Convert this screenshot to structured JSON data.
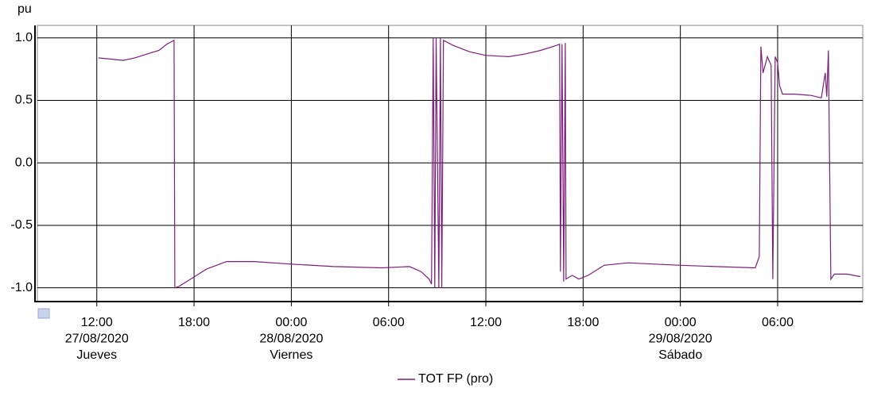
{
  "chart_data": {
    "type": "line",
    "y_label": "pu",
    "x": [
      "2020-08-27 12:06",
      "2020-08-27 12:53",
      "2020-08-27 13:37",
      "2020-08-27 14:21",
      "2020-08-27 15:05",
      "2020-08-27 15:50",
      "2020-08-27 16:19",
      "2020-08-27 16:46",
      "2020-08-27 16:49",
      "2020-08-27 17:03",
      "2020-08-27 17:47",
      "2020-08-27 18:46",
      "2020-08-27 20:00",
      "2020-08-27 21:43",
      "2020-08-28 00:00",
      "2020-08-28 02:37",
      "2020-08-28 05:34",
      "2020-08-28 07:17",
      "2020-08-28 08:00",
      "2020-08-28 08:30",
      "2020-08-28 08:39",
      "2020-08-28 08:45",
      "2020-08-28 08:51",
      "2020-08-28 08:56",
      "2020-08-28 09:06",
      "2020-08-28 09:12",
      "2020-08-28 09:17",
      "2020-08-28 09:23",
      "2020-08-28 09:59",
      "2020-08-28 10:58",
      "2020-08-28 11:59",
      "2020-08-28 13:25",
      "2020-08-28 14:23",
      "2020-08-28 15:23",
      "2020-08-28 16:22",
      "2020-08-28 16:33",
      "2020-08-28 16:36",
      "2020-08-28 16:42",
      "2020-08-28 16:48",
      "2020-08-28 16:54",
      "2020-08-28 16:57",
      "2020-08-28 17:20",
      "2020-08-28 17:44",
      "2020-08-28 18:19",
      "2020-08-28 19:18",
      "2020-08-28 20:46",
      "2020-08-29 00:00",
      "2020-08-29 02:10",
      "2020-08-29 04:37",
      "2020-08-29 04:52",
      "2020-08-29 04:58",
      "2020-08-29 05:06",
      "2020-08-29 05:22",
      "2020-08-29 05:36",
      "2020-08-29 05:42",
      "2020-08-29 05:51",
      "2020-08-29 06:00",
      "2020-08-29 06:07",
      "2020-08-29 06:18",
      "2020-08-29 07:04",
      "2020-08-29 08:03",
      "2020-08-29 08:42",
      "2020-08-29 08:56",
      "2020-08-29 09:02",
      "2020-08-29 09:08",
      "2020-08-29 09:17",
      "2020-08-29 09:30",
      "2020-08-29 10:16",
      "2020-08-29 11:06"
    ],
    "series": [
      {
        "name": "TOT FP (pro)",
        "color": "#7b1f7b",
        "values": [
          0.84,
          0.83,
          0.82,
          0.84,
          0.87,
          0.9,
          0.95,
          0.98,
          -1.0,
          -0.99,
          -0.93,
          -0.85,
          -0.79,
          -0.79,
          -0.81,
          -0.83,
          -0.84,
          -0.83,
          -0.87,
          -0.93,
          -0.97,
          1.0,
          -1.0,
          1.0,
          -1.0,
          1.0,
          -1.0,
          0.98,
          0.94,
          0.89,
          0.86,
          0.85,
          0.87,
          0.9,
          0.94,
          0.95,
          -0.87,
          0.95,
          -0.95,
          0.96,
          -0.93,
          -0.9,
          -0.93,
          -0.9,
          -0.82,
          -0.8,
          -0.82,
          -0.83,
          -0.84,
          -0.75,
          0.93,
          0.72,
          0.85,
          0.78,
          -0.93,
          0.85,
          0.8,
          0.62,
          0.55,
          0.55,
          0.54,
          0.52,
          0.72,
          0.53,
          0.9,
          -0.93,
          -0.89,
          -0.89,
          -0.91
        ]
      }
    ],
    "xlim": [
      "2020-08-27 08:20",
      "2020-08-29 11:15"
    ],
    "xticks": [
      {
        "value": "2020-08-27 12:00",
        "label": [
          "12:00",
          "27/08/2020",
          "Jueves"
        ]
      },
      {
        "value": "2020-08-27 18:00",
        "label": [
          "18:00"
        ]
      },
      {
        "value": "2020-08-28 00:00",
        "label": [
          "00:00",
          "28/08/2020",
          "Viernes"
        ]
      },
      {
        "value": "2020-08-28 06:00",
        "label": [
          "06:00"
        ]
      },
      {
        "value": "2020-08-28 12:00",
        "label": [
          "12:00"
        ]
      },
      {
        "value": "2020-08-28 18:00",
        "label": [
          "18:00"
        ]
      },
      {
        "value": "2020-08-29 00:00",
        "label": [
          "00:00",
          "29/08/2020",
          "Sábado"
        ]
      },
      {
        "value": "2020-08-29 06:00",
        "label": [
          "06:00"
        ]
      }
    ],
    "ylim": [
      -1.11,
      1.1
    ],
    "yticks": [
      {
        "value": 1,
        "label": "1.0"
      },
      0.5,
      {
        "value": 0,
        "label": "0.0"
      },
      -0.5,
      {
        "value": -1,
        "label": "-1.0"
      }
    ],
    "grid": true
  }
}
